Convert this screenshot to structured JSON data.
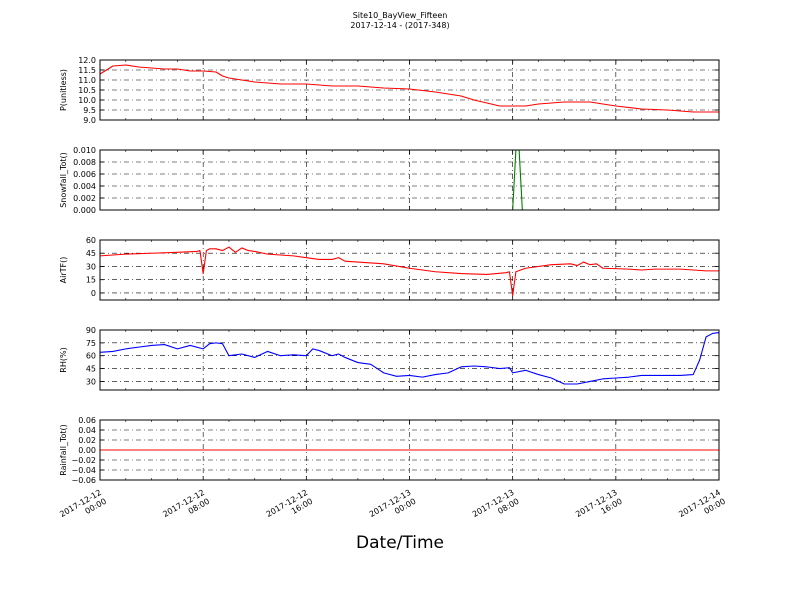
{
  "figure": {
    "title_line1": "Site10_BayView_Fifteen",
    "title_line2": "2017-12-14 - (2017-348)",
    "xlabel": "Date/Time"
  },
  "chart_data": {
    "type": "line",
    "grid": true,
    "xlim": [
      "2017-12-12 00:00",
      "2017-12-14 00:00"
    ],
    "x_ticks": [
      "2017-12-12 00:00",
      "2017-12-12 08:00",
      "2017-12-12 16:00",
      "2017-12-13 00:00",
      "2017-12-13 08:00",
      "2017-12-13 16:00",
      "2017-12-14 00:00"
    ],
    "x_tick_labels": [
      [
        "2017-12-12",
        "00:00"
      ],
      [
        "2017-12-12",
        "08:00"
      ],
      [
        "2017-12-12",
        "16:00"
      ],
      [
        "2017-12-13",
        "00:00"
      ],
      [
        "2017-12-13",
        "08:00"
      ],
      [
        "2017-12-13",
        "16:00"
      ],
      [
        "2017-12-14",
        "00:00"
      ]
    ],
    "panels": [
      {
        "ylabel": "P(unitless)",
        "color": "#ff0000",
        "ylim": [
          9.0,
          12.0
        ],
        "yticks": [
          "12.0",
          "11.5",
          "11.0",
          "10.5",
          "10.0",
          "9.5",
          "9.0"
        ],
        "points": [
          [
            "2017-12-12 00:00",
            11.3
          ],
          [
            "2017-12-12 01:00",
            11.7
          ],
          [
            "2017-12-12 02:00",
            11.75
          ],
          [
            "2017-12-12 03:00",
            11.65
          ],
          [
            "2017-12-12 04:00",
            11.6
          ],
          [
            "2017-12-12 05:00",
            11.55
          ],
          [
            "2017-12-12 06:00",
            11.55
          ],
          [
            "2017-12-12 07:00",
            11.45
          ],
          [
            "2017-12-12 08:00",
            11.45
          ],
          [
            "2017-12-12 09:00",
            11.4
          ],
          [
            "2017-12-12 09:30",
            11.2
          ],
          [
            "2017-12-12 10:00",
            11.1
          ],
          [
            "2017-12-12 11:00",
            11.0
          ],
          [
            "2017-12-12 12:00",
            10.9
          ],
          [
            "2017-12-12 14:00",
            10.8
          ],
          [
            "2017-12-12 16:00",
            10.8
          ],
          [
            "2017-12-12 18:00",
            10.7
          ],
          [
            "2017-12-12 20:00",
            10.7
          ],
          [
            "2017-12-12 22:00",
            10.6
          ],
          [
            "2017-12-13 00:00",
            10.55
          ],
          [
            "2017-12-13 02:00",
            10.4
          ],
          [
            "2017-12-13 04:00",
            10.2
          ],
          [
            "2017-12-13 05:00",
            10.0
          ],
          [
            "2017-12-13 06:00",
            9.85
          ],
          [
            "2017-12-13 07:00",
            9.7
          ],
          [
            "2017-12-13 08:00",
            9.7
          ],
          [
            "2017-12-13 09:00",
            9.7
          ],
          [
            "2017-12-13 10:00",
            9.8
          ],
          [
            "2017-12-13 12:00",
            9.9
          ],
          [
            "2017-12-13 14:00",
            9.9
          ],
          [
            "2017-12-13 15:00",
            9.8
          ],
          [
            "2017-12-13 16:00",
            9.7
          ],
          [
            "2017-12-13 18:00",
            9.55
          ],
          [
            "2017-12-13 20:00",
            9.5
          ],
          [
            "2017-12-13 21:00",
            9.45
          ],
          [
            "2017-12-13 22:00",
            9.4
          ],
          [
            "2017-12-14 00:00",
            9.4
          ]
        ]
      },
      {
        "ylabel": "Snowfall_Tot()",
        "color": "#008000",
        "ylim": [
          0.0,
          0.01
        ],
        "yticks": [
          "0.010",
          "0.008",
          "0.006",
          "0.004",
          "0.002",
          "0.000"
        ],
        "points": [
          [
            "2017-12-12 00:00",
            0.0
          ],
          [
            "2017-12-13 08:00",
            0.0
          ],
          [
            "2017-12-13 08:15",
            0.01
          ],
          [
            "2017-12-13 08:30",
            0.01
          ],
          [
            "2017-12-13 08:45",
            0.0
          ],
          [
            "2017-12-14 00:00",
            0.0
          ]
        ]
      },
      {
        "ylabel": "AirTF()",
        "color": "#ff0000",
        "ylim": [
          -8,
          60
        ],
        "yticks": [
          "60",
          "45",
          "30",
          "15",
          "0"
        ],
        "points": [
          [
            "2017-12-12 00:00",
            42
          ],
          [
            "2017-12-12 02:00",
            44
          ],
          [
            "2017-12-12 04:00",
            45
          ],
          [
            "2017-12-12 06:00",
            46
          ],
          [
            "2017-12-12 07:30",
            47
          ],
          [
            "2017-12-12 07:45",
            48
          ],
          [
            "2017-12-12 08:00",
            22
          ],
          [
            "2017-12-12 08:15",
            48
          ],
          [
            "2017-12-12 08:30",
            50
          ],
          [
            "2017-12-12 09:00",
            50
          ],
          [
            "2017-12-12 09:30",
            48
          ],
          [
            "2017-12-12 10:00",
            52
          ],
          [
            "2017-12-12 10:30",
            46
          ],
          [
            "2017-12-12 11:00",
            51
          ],
          [
            "2017-12-12 11:30",
            48
          ],
          [
            "2017-12-12 12:00",
            47
          ],
          [
            "2017-12-12 13:00",
            44
          ],
          [
            "2017-12-12 15:00",
            42
          ],
          [
            "2017-12-12 16:00",
            40
          ],
          [
            "2017-12-12 17:00",
            38
          ],
          [
            "2017-12-12 18:00",
            38
          ],
          [
            "2017-12-12 18:30",
            40
          ],
          [
            "2017-12-12 19:00",
            36
          ],
          [
            "2017-12-12 20:00",
            35
          ],
          [
            "2017-12-12 22:00",
            33
          ],
          [
            "2017-12-13 00:00",
            28
          ],
          [
            "2017-12-13 02:00",
            24
          ],
          [
            "2017-12-13 04:00",
            22
          ],
          [
            "2017-12-13 06:00",
            21
          ],
          [
            "2017-12-13 07:30",
            23
          ],
          [
            "2017-12-13 07:45",
            24
          ],
          [
            "2017-12-13 08:00",
            -3
          ],
          [
            "2017-12-13 08:15",
            24
          ],
          [
            "2017-12-13 09:00",
            28
          ],
          [
            "2017-12-13 11:00",
            32
          ],
          [
            "2017-12-13 12:30",
            33
          ],
          [
            "2017-12-13 13:00",
            31
          ],
          [
            "2017-12-13 13:30",
            35
          ],
          [
            "2017-12-13 14:00",
            32
          ],
          [
            "2017-12-13 14:30",
            33
          ],
          [
            "2017-12-13 15:00",
            28
          ],
          [
            "2017-12-13 17:00",
            27
          ],
          [
            "2017-12-13 18:00",
            26
          ],
          [
            "2017-12-13 19:00",
            27
          ],
          [
            "2017-12-13 21:00",
            27
          ],
          [
            "2017-12-13 23:00",
            25
          ],
          [
            "2017-12-14 00:00",
            25
          ]
        ]
      },
      {
        "ylabel": "RH(%)",
        "color": "#0000ff",
        "ylim": [
          20,
          90
        ],
        "yticks": [
          "90",
          "75",
          "60",
          "45",
          "30"
        ],
        "points": [
          [
            "2017-12-12 00:00",
            64
          ],
          [
            "2017-12-12 01:00",
            65
          ],
          [
            "2017-12-12 02:00",
            68
          ],
          [
            "2017-12-12 03:00",
            70
          ],
          [
            "2017-12-12 04:00",
            72
          ],
          [
            "2017-12-12 05:00",
            73
          ],
          [
            "2017-12-12 06:00",
            68
          ],
          [
            "2017-12-12 07:00",
            72
          ],
          [
            "2017-12-12 08:00",
            68
          ],
          [
            "2017-12-12 08:30",
            74
          ],
          [
            "2017-12-12 09:00",
            75
          ],
          [
            "2017-12-12 09:30",
            74
          ],
          [
            "2017-12-12 10:00",
            60
          ],
          [
            "2017-12-12 11:00",
            62
          ],
          [
            "2017-12-12 12:00",
            58
          ],
          [
            "2017-12-12 13:00",
            65
          ],
          [
            "2017-12-12 14:00",
            60
          ],
          [
            "2017-12-12 15:00",
            61
          ],
          [
            "2017-12-12 16:00",
            60
          ],
          [
            "2017-12-12 16:30",
            68
          ],
          [
            "2017-12-12 17:00",
            66
          ],
          [
            "2017-12-12 18:00",
            60
          ],
          [
            "2017-12-12 18:30",
            62
          ],
          [
            "2017-12-12 19:00",
            58
          ],
          [
            "2017-12-12 20:00",
            52
          ],
          [
            "2017-12-12 21:00",
            50
          ],
          [
            "2017-12-12 22:00",
            40
          ],
          [
            "2017-12-12 23:00",
            36
          ],
          [
            "2017-12-13 00:00",
            37
          ],
          [
            "2017-12-13 01:00",
            35
          ],
          [
            "2017-12-13 02:00",
            38
          ],
          [
            "2017-12-13 03:00",
            40
          ],
          [
            "2017-12-13 04:00",
            47
          ],
          [
            "2017-12-13 05:00",
            48
          ],
          [
            "2017-12-13 06:00",
            47
          ],
          [
            "2017-12-13 07:00",
            45
          ],
          [
            "2017-12-13 07:45",
            46
          ],
          [
            "2017-12-13 08:00",
            40
          ],
          [
            "2017-12-13 09:00",
            43
          ],
          [
            "2017-12-13 10:00",
            38
          ],
          [
            "2017-12-13 11:00",
            34
          ],
          [
            "2017-12-13 12:00",
            27
          ],
          [
            "2017-12-13 13:00",
            27
          ],
          [
            "2017-12-13 14:00",
            30
          ],
          [
            "2017-12-13 15:00",
            33
          ],
          [
            "2017-12-13 16:00",
            34
          ],
          [
            "2017-12-13 17:00",
            35
          ],
          [
            "2017-12-13 18:00",
            37
          ],
          [
            "2017-12-13 19:00",
            37
          ],
          [
            "2017-12-13 20:00",
            37
          ],
          [
            "2017-12-13 21:00",
            37
          ],
          [
            "2017-12-13 22:00",
            38
          ],
          [
            "2017-12-13 22:30",
            55
          ],
          [
            "2017-12-13 23:00",
            82
          ],
          [
            "2017-12-13 23:30",
            86
          ],
          [
            "2017-12-14 00:00",
            87
          ]
        ]
      },
      {
        "ylabel": "Rainfall_Tot()",
        "color": "#ff0000",
        "ylim": [
          -0.06,
          0.06
        ],
        "yticks": [
          "0.06",
          "0.04",
          "0.02",
          "0.00",
          "−0.02",
          "−0.04",
          "−0.06"
        ],
        "points": [
          [
            "2017-12-12 00:00",
            0.0
          ],
          [
            "2017-12-14 00:00",
            0.0
          ]
        ]
      }
    ]
  }
}
